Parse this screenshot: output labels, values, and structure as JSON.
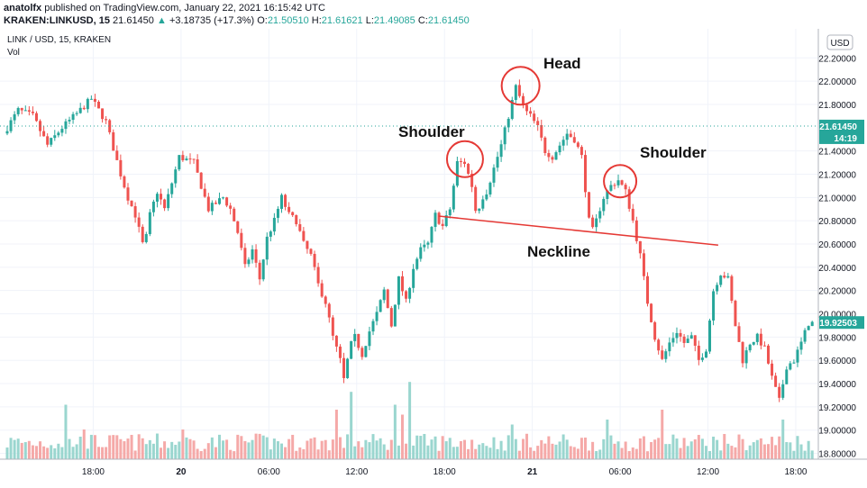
{
  "header": {
    "author": "anatolfx",
    "published": "published on TradingView.com, January 22, 2021 16:15:42 UTC",
    "symbol": "KRAKEN:LINKUSD, 15",
    "last": "21.61450",
    "change": "+3.18735 (+17.3%)",
    "o_label": "O:",
    "o": "21.50510",
    "h_label": "H:",
    "h": "21.61621",
    "l_label": "L:",
    "l": "21.49085",
    "c_label": "C:",
    "c": "21.61450"
  },
  "chart_header": {
    "title": "LINK / USD, 15, KRAKEN",
    "volume_label": "Vol"
  },
  "currency_badge": "USD",
  "colors": {
    "up": "#26a69a",
    "down": "#ef5350",
    "annotation": "#e53935",
    "vol_up": "#9ad6cf",
    "vol_down": "#f5a9a8"
  },
  "chart_data": {
    "type": "candlestick",
    "title": "LINK / USD, 15, KRAKEN",
    "ylim": [
      18.75,
      22.45
    ],
    "y_ticks": [
      "22.20000",
      "22.00000",
      "21.80000",
      "21.40000",
      "21.20000",
      "21.00000",
      "20.80000",
      "20.60000",
      "20.40000",
      "20.20000",
      "20.00000",
      "19.80000",
      "19.60000",
      "19.40000",
      "19.20000",
      "19.00000",
      "18.80000"
    ],
    "y_tick_values": [
      22.2,
      22.0,
      21.8,
      21.4,
      21.2,
      21.0,
      20.8,
      20.6,
      20.4,
      20.2,
      20.0,
      19.8,
      19.6,
      19.4,
      19.2,
      19.0,
      18.8
    ],
    "x_ticks": [
      "18:00",
      "20",
      "06:00",
      "12:00",
      "18:00",
      "21",
      "06:00",
      "12:00",
      "18:00"
    ],
    "x_tick_hours": [
      6,
      12,
      18,
      24,
      30,
      36,
      42,
      48,
      54
    ],
    "price_tags": [
      {
        "label": "21.61450",
        "value": 21.6145,
        "color": "#26a69a"
      },
      {
        "label": "14:19",
        "value": 21.53,
        "color": "#26a69a"
      },
      {
        "label": "19.92503",
        "value": 19.925,
        "color": "#26a69a"
      }
    ],
    "anchors": [
      [
        0,
        21.55
      ],
      [
        1,
        21.75
      ],
      [
        2,
        21.7
      ],
      [
        3,
        21.45
      ],
      [
        4,
        21.6
      ],
      [
        5,
        21.72
      ],
      [
        6,
        21.85
      ],
      [
        7,
        21.65
      ],
      [
        8,
        21.2
      ],
      [
        8.5,
        21.0
      ],
      [
        9,
        20.85
      ],
      [
        9.6,
        20.55
      ],
      [
        10,
        20.85
      ],
      [
        10.5,
        21.05
      ],
      [
        11,
        20.9
      ],
      [
        12,
        21.35
      ],
      [
        13,
        21.3
      ],
      [
        13.5,
        21.1
      ],
      [
        14,
        20.9
      ],
      [
        14.5,
        20.95
      ],
      [
        15,
        21.0
      ],
      [
        15.5,
        20.9
      ],
      [
        16,
        20.7
      ],
      [
        16.5,
        20.4
      ],
      [
        17,
        20.55
      ],
      [
        17.5,
        20.3
      ],
      [
        18,
        20.65
      ],
      [
        18.5,
        20.8
      ],
      [
        19,
        21.0
      ],
      [
        19.5,
        20.85
      ],
      [
        20,
        20.8
      ],
      [
        20.5,
        20.6
      ],
      [
        21,
        20.5
      ],
      [
        21.5,
        20.25
      ],
      [
        22,
        20.1
      ],
      [
        22.5,
        19.8
      ],
      [
        23,
        19.6
      ],
      [
        23.3,
        19.4
      ],
      [
        23.6,
        19.7
      ],
      [
        24,
        19.8
      ],
      [
        24.5,
        19.65
      ],
      [
        25,
        19.85
      ],
      [
        25.5,
        20.0
      ],
      [
        26,
        20.2
      ],
      [
        26.5,
        19.9
      ],
      [
        27,
        20.3
      ],
      [
        27.5,
        20.1
      ],
      [
        28,
        20.4
      ],
      [
        28.5,
        20.55
      ],
      [
        29,
        20.6
      ],
      [
        29.5,
        20.85
      ],
      [
        30,
        20.75
      ],
      [
        30.5,
        20.9
      ],
      [
        31,
        21.3
      ],
      [
        31.5,
        21.3
      ],
      [
        32,
        21.1
      ],
      [
        32.3,
        20.85
      ],
      [
        32.7,
        21.0
      ],
      [
        33,
        21.05
      ],
      [
        33.5,
        21.25
      ],
      [
        34,
        21.45
      ],
      [
        34.3,
        21.6
      ],
      [
        34.6,
        21.75
      ],
      [
        35,
        21.95
      ],
      [
        35.3,
        21.85
      ],
      [
        35.6,
        21.75
      ],
      [
        36,
        21.7
      ],
      [
        36.5,
        21.6
      ],
      [
        37,
        21.4
      ],
      [
        37.5,
        21.35
      ],
      [
        38,
        21.45
      ],
      [
        38.5,
        21.55
      ],
      [
        39,
        21.5
      ],
      [
        39.5,
        21.35
      ],
      [
        40,
        20.8
      ],
      [
        40.3,
        20.7
      ],
      [
        40.6,
        20.85
      ],
      [
        41,
        21.0
      ],
      [
        41.5,
        21.1
      ],
      [
        42,
        21.15
      ],
      [
        42.5,
        21.05
      ],
      [
        43,
        20.8
      ],
      [
        43.5,
        20.5
      ],
      [
        44,
        20.1
      ],
      [
        44.5,
        19.8
      ],
      [
        45,
        19.6
      ],
      [
        45.5,
        19.75
      ],
      [
        46,
        19.85
      ],
      [
        46.5,
        19.75
      ],
      [
        47,
        19.8
      ],
      [
        47.5,
        19.6
      ],
      [
        48,
        19.7
      ],
      [
        48.5,
        20.2
      ],
      [
        49,
        20.35
      ],
      [
        49.5,
        20.3
      ],
      [
        50,
        19.9
      ],
      [
        50.5,
        19.6
      ],
      [
        51,
        19.75
      ],
      [
        51.5,
        19.8
      ],
      [
        52,
        19.7
      ],
      [
        52.5,
        19.45
      ],
      [
        53,
        19.25
      ],
      [
        53.5,
        19.55
      ],
      [
        54,
        19.6
      ],
      [
        54.5,
        19.75
      ],
      [
        55,
        19.92
      ]
    ],
    "volume_spikes": [
      {
        "hour": 4.0,
        "value": 0.55,
        "dir": "down"
      },
      {
        "hour": 5.2,
        "value": 0.3,
        "dir": "up"
      },
      {
        "hour": 12.0,
        "value": 0.3,
        "dir": "down"
      },
      {
        "hour": 22.5,
        "value": 0.5,
        "dir": "down"
      },
      {
        "hour": 23.4,
        "value": 0.68,
        "dir": "down"
      },
      {
        "hour": 26.4,
        "value": 0.55,
        "dir": "up"
      },
      {
        "hour": 27.0,
        "value": 0.45,
        "dir": "down"
      },
      {
        "hour": 27.6,
        "value": 0.78,
        "dir": "up"
      },
      {
        "hour": 34.5,
        "value": 0.35,
        "dir": "down"
      },
      {
        "hour": 41.0,
        "value": 0.4,
        "dir": "up"
      },
      {
        "hour": 44.8,
        "value": 0.5,
        "dir": "down"
      },
      {
        "hour": 53.0,
        "value": 0.4,
        "dir": "up"
      }
    ],
    "annotations": [
      {
        "label": "Head"
      },
      {
        "label": "Shoulder",
        "side": "left"
      },
      {
        "label": "Shoulder",
        "side": "right"
      },
      {
        "label": "Neckline"
      }
    ],
    "neckline": [
      [
        29.6,
        20.84
      ],
      [
        48.7,
        20.59
      ]
    ],
    "circles": [
      [
        35.2,
        21.96
      ],
      [
        31.4,
        21.33
      ],
      [
        42.0,
        21.14
      ]
    ]
  }
}
